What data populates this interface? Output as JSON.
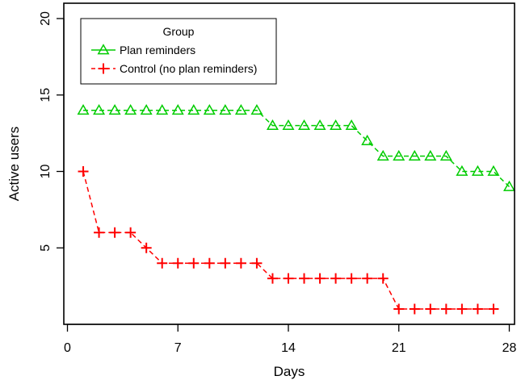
{
  "chart_data": {
    "type": "line",
    "title": "",
    "xlabel": "Days",
    "ylabel": "Active users",
    "xlim": [
      0,
      28
    ],
    "ylim": [
      0,
      20
    ],
    "xticks": [
      0,
      7,
      14,
      21,
      28
    ],
    "yticks": [
      5,
      10,
      15,
      20
    ],
    "grid": false,
    "legend": {
      "title": "Group",
      "position": "top-left"
    },
    "series": [
      {
        "name": "Plan reminders",
        "color": "#00cc00",
        "marker": "triangle",
        "line_style": "dashed",
        "x": [
          1,
          2,
          3,
          4,
          5,
          6,
          7,
          8,
          9,
          10,
          11,
          12,
          13,
          14,
          15,
          16,
          17,
          18,
          19,
          20,
          21,
          22,
          23,
          24,
          25,
          26,
          27,
          28
        ],
        "y": [
          14,
          14,
          14,
          14,
          14,
          14,
          14,
          14,
          14,
          14,
          14,
          14,
          13,
          13,
          13,
          13,
          13,
          13,
          12,
          11,
          11,
          11,
          11,
          11,
          10,
          10,
          10,
          9
        ]
      },
      {
        "name": "Control (no plan reminders)",
        "color": "#ff0000",
        "marker": "plus",
        "line_style": "dashed",
        "x": [
          1,
          2,
          3,
          4,
          5,
          6,
          7,
          8,
          9,
          10,
          11,
          12,
          13,
          14,
          15,
          16,
          17,
          18,
          19,
          20,
          21,
          22,
          23,
          24,
          25,
          26,
          27
        ],
        "y": [
          10,
          6,
          6,
          6,
          5,
          4,
          4,
          4,
          4,
          4,
          4,
          4,
          3,
          3,
          3,
          3,
          3,
          3,
          3,
          3,
          1,
          1,
          1,
          1,
          1,
          1,
          1
        ]
      }
    ]
  }
}
